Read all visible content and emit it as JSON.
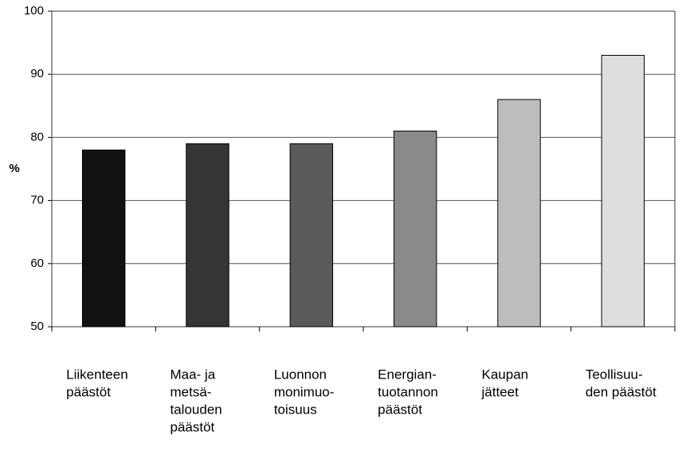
{
  "chart_data": {
    "type": "bar",
    "categories": [
      [
        "Liikenteen",
        "päästöt"
      ],
      [
        "Maa- ja",
        "metsä-",
        "talouden",
        "päästöt"
      ],
      [
        "Luonnon",
        "monimuo-",
        "toisuus"
      ],
      [
        "Energian-",
        "tuotannon",
        "päästöt"
      ],
      [
        "Kaupan",
        "jätteet"
      ],
      [
        "Teollisuu-",
        "den päästöt"
      ]
    ],
    "values": [
      78,
      79,
      79,
      81,
      86,
      93
    ],
    "colors": [
      "#111111",
      "#353535",
      "#5a5a5a",
      "#8a8a8a",
      "#bdbdbd",
      "#dedede"
    ],
    "ylabel": "%",
    "ylim": [
      50,
      100
    ],
    "yticks": [
      50,
      60,
      70,
      80,
      90,
      100
    ],
    "grid": true
  }
}
